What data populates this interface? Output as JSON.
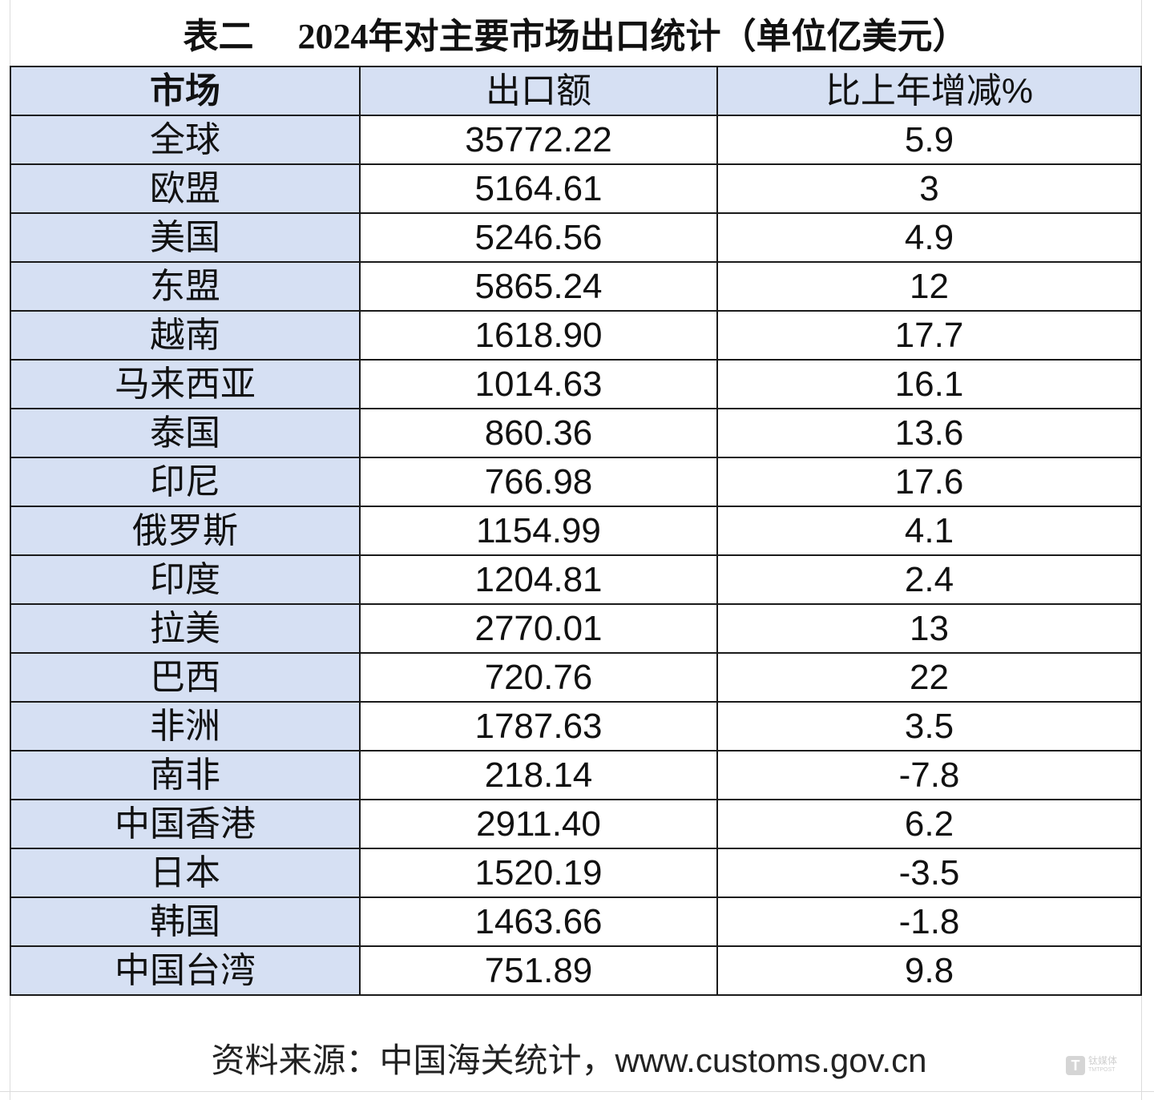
{
  "title": "表二　 2024年对主要市场出口统计（单位亿美元）",
  "table": {
    "headers": [
      "市场",
      "出口额",
      "比上年增减%"
    ],
    "rows": [
      [
        "全球",
        "35772.22",
        "5.9"
      ],
      [
        "欧盟",
        "5164.61",
        "3"
      ],
      [
        "美国",
        "5246.56",
        "4.9"
      ],
      [
        "东盟",
        "5865.24",
        "12"
      ],
      [
        "越南",
        "1618.90",
        "17.7"
      ],
      [
        "马来西亚",
        "1014.63",
        "16.1"
      ],
      [
        "泰国",
        "860.36",
        "13.6"
      ],
      [
        "印尼",
        "766.98",
        "17.6"
      ],
      [
        "俄罗斯",
        "1154.99",
        "4.1"
      ],
      [
        "印度",
        "1204.81",
        "2.4"
      ],
      [
        "拉美",
        "2770.01",
        "13"
      ],
      [
        "巴西",
        "720.76",
        "22"
      ],
      [
        "非洲",
        "1787.63",
        "3.5"
      ],
      [
        "南非",
        "218.14",
        "-7.8"
      ],
      [
        "中国香港",
        "2911.40",
        "6.2"
      ],
      [
        "日本",
        "1520.19",
        "-3.5"
      ],
      [
        "韩国",
        "1463.66",
        "-1.8"
      ],
      [
        "中国台湾",
        "751.89",
        "9.8"
      ]
    ]
  },
  "footer": "资料来源：中国海关统计，www.customs.gov.cn",
  "watermark": {
    "logo": "T",
    "text": "钛媒体",
    "sub": "TMTPOST"
  },
  "colors": {
    "header_fill": "#d6e0f3",
    "border": "#1a1a1a"
  }
}
